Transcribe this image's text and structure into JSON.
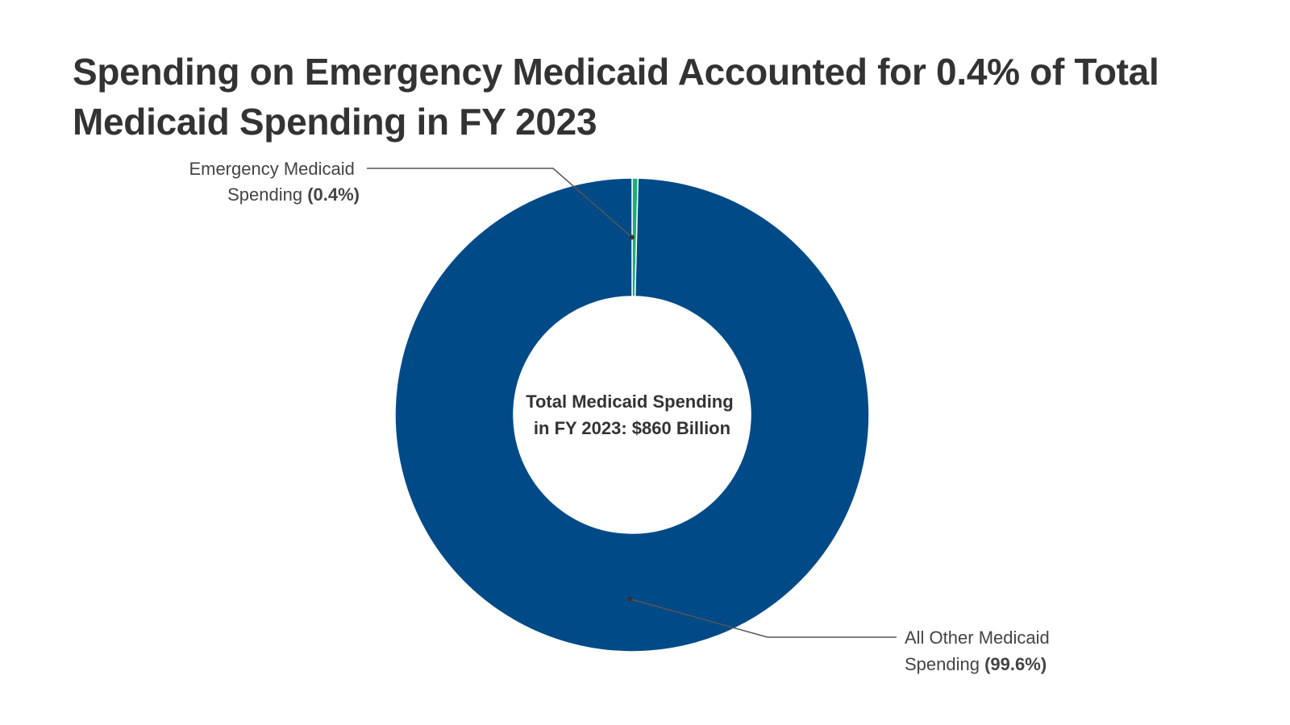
{
  "chart_data": {
    "type": "pie",
    "variant": "donut",
    "title": "Spending on Emergency Medicaid Accounted for 0.4% of Total Medicaid Spending in FY 2023",
    "center_label": [
      "Total Medicaid Spending",
      "in FY 2023: $860 Billion"
    ],
    "total": {
      "label": "Total Medicaid Spending in FY 2023",
      "value": 860,
      "unit": "Billion USD"
    },
    "slices": [
      {
        "name": "Emergency Medicaid Spending",
        "value": 0.4,
        "unit": "%",
        "color": "#1aaf7a",
        "label_lines": [
          "Emergency Medicaid",
          "Spending"
        ],
        "value_label": "(0.4%)",
        "label_position": "top-left"
      },
      {
        "name": "All Other Medicaid Spending",
        "value": 99.6,
        "unit": "%",
        "color": "#004a87",
        "label_lines": [
          "All Other Medicaid",
          "Spending"
        ],
        "value_label": "(99.6%)",
        "label_position": "bottom-right"
      }
    ],
    "legend": "none"
  }
}
